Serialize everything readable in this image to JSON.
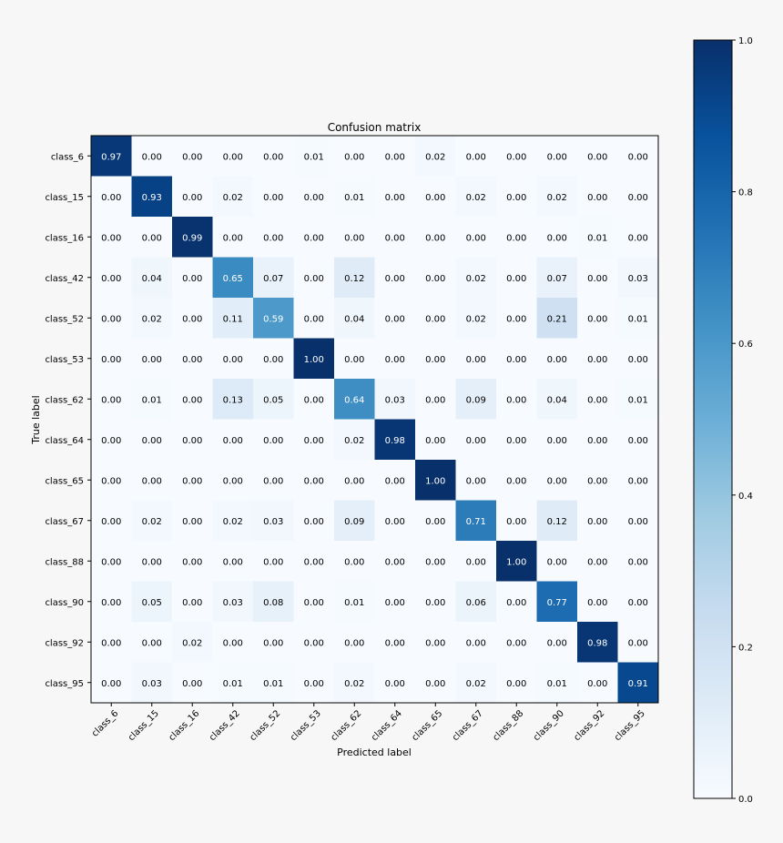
{
  "chart_data": {
    "type": "heatmap",
    "title": "Confusion matrix",
    "xlabel": "Predicted label",
    "ylabel": "True label",
    "x_categories": [
      "class_6",
      "class_15",
      "class_16",
      "class_42",
      "class_52",
      "class_53",
      "class_62",
      "class_64",
      "class_65",
      "class_67",
      "class_88",
      "class_90",
      "class_92",
      "class_95"
    ],
    "y_categories": [
      "class_6",
      "class_15",
      "class_16",
      "class_42",
      "class_52",
      "class_53",
      "class_62",
      "class_64",
      "class_65",
      "class_67",
      "class_88",
      "class_90",
      "class_92",
      "class_95"
    ],
    "values": [
      [
        0.97,
        0.0,
        0.0,
        0.0,
        0.0,
        0.01,
        0.0,
        0.0,
        0.02,
        0.0,
        0.0,
        0.0,
        0.0,
        0.0
      ],
      [
        0.0,
        0.93,
        0.0,
        0.02,
        0.0,
        0.0,
        0.01,
        0.0,
        0.0,
        0.02,
        0.0,
        0.02,
        0.0,
        0.0
      ],
      [
        0.0,
        0.0,
        0.99,
        0.0,
        0.0,
        0.0,
        0.0,
        0.0,
        0.0,
        0.0,
        0.0,
        0.0,
        0.01,
        0.0
      ],
      [
        0.0,
        0.04,
        0.0,
        0.65,
        0.07,
        0.0,
        0.12,
        0.0,
        0.0,
        0.02,
        0.0,
        0.07,
        0.0,
        0.03
      ],
      [
        0.0,
        0.02,
        0.0,
        0.11,
        0.59,
        0.0,
        0.04,
        0.0,
        0.0,
        0.02,
        0.0,
        0.21,
        0.0,
        0.01
      ],
      [
        0.0,
        0.0,
        0.0,
        0.0,
        0.0,
        1.0,
        0.0,
        0.0,
        0.0,
        0.0,
        0.0,
        0.0,
        0.0,
        0.0
      ],
      [
        0.0,
        0.01,
        0.0,
        0.13,
        0.05,
        0.0,
        0.64,
        0.03,
        0.0,
        0.09,
        0.0,
        0.04,
        0.0,
        0.01
      ],
      [
        0.0,
        0.0,
        0.0,
        0.0,
        0.0,
        0.0,
        0.02,
        0.98,
        0.0,
        0.0,
        0.0,
        0.0,
        0.0,
        0.0
      ],
      [
        0.0,
        0.0,
        0.0,
        0.0,
        0.0,
        0.0,
        0.0,
        0.0,
        1.0,
        0.0,
        0.0,
        0.0,
        0.0,
        0.0
      ],
      [
        0.0,
        0.02,
        0.0,
        0.02,
        0.03,
        0.0,
        0.09,
        0.0,
        0.0,
        0.71,
        0.0,
        0.12,
        0.0,
        0.0
      ],
      [
        0.0,
        0.0,
        0.0,
        0.0,
        0.0,
        0.0,
        0.0,
        0.0,
        0.0,
        0.0,
        1.0,
        0.0,
        0.0,
        0.0
      ],
      [
        0.0,
        0.05,
        0.0,
        0.03,
        0.08,
        0.0,
        0.01,
        0.0,
        0.0,
        0.06,
        0.0,
        0.77,
        0.0,
        0.0
      ],
      [
        0.0,
        0.0,
        0.02,
        0.0,
        0.0,
        0.0,
        0.0,
        0.0,
        0.0,
        0.0,
        0.0,
        0.0,
        0.98,
        0.0
      ],
      [
        0.0,
        0.03,
        0.0,
        0.01,
        0.01,
        0.0,
        0.02,
        0.0,
        0.0,
        0.02,
        0.0,
        0.01,
        0.0,
        0.91
      ]
    ],
    "value_range": [
      0,
      1
    ],
    "colormap": "Blues",
    "colorbar_ticks": [
      "0.0",
      "0.2",
      "0.4",
      "0.6",
      "0.8",
      "1.0"
    ],
    "grid": false,
    "colors": {
      "low": "#f7fbff",
      "high": "#08306b",
      "text_dark": "#000000",
      "text_light": "#ffffff",
      "background": "#f7f7f7"
    }
  }
}
